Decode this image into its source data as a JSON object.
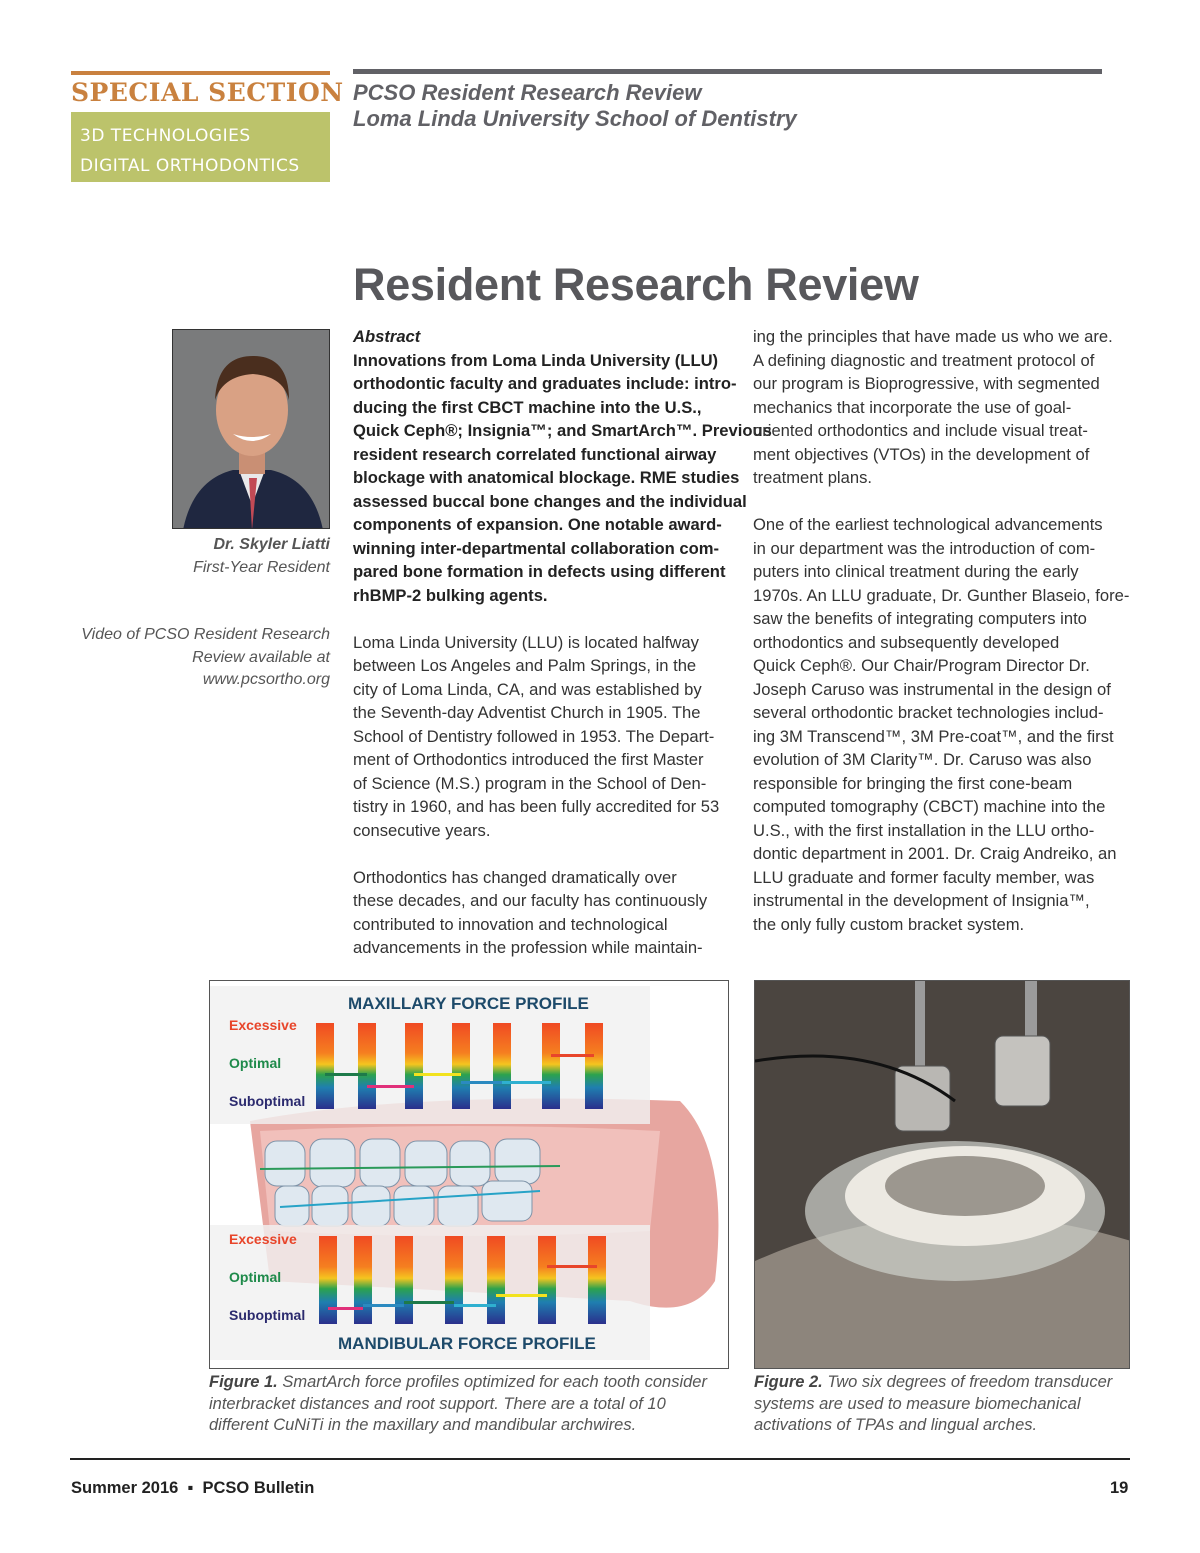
{
  "header": {
    "section_label": "SPECIAL SECTION",
    "topics": [
      "3D TECHNOLOGIES",
      "DIGITAL ORTHODONTICS"
    ],
    "subtitle_lines": [
      "PCSO Resident Research Review",
      "Loma Linda University School of Dentistry"
    ]
  },
  "title": "Resident Research Review",
  "sidebar": {
    "name": "Dr. Skyler Liatti",
    "role": "First-Year Resident",
    "video_lines": [
      "Video of PCSO Resident Research",
      "Review available at",
      "www.pcsortho.org"
    ]
  },
  "abstract": {
    "heading": "Abstract",
    "lines": [
      "Innovations from Loma Linda University (LLU)",
      "orthodontic faculty and graduates include: intro-",
      "ducing the first CBCT machine into the U.S.,",
      "Quick Ceph®; Insignia™; and SmartArch™. Previous",
      "resident research correlated functional airway",
      "blockage with anatomical blockage. RME studies",
      "assessed buccal bone changes and the individual",
      "components of expansion. One notable award-",
      "winning inter-departmental collaboration com-",
      "pared bone formation in defects using different",
      "rhBMP-2 bulking agents."
    ]
  },
  "middle_paragraphs": [
    [
      "Loma Linda University (LLU) is located halfway",
      "between Los Angeles and Palm Springs, in the",
      "city of Loma Linda, CA, and was established by",
      "the Seventh-day Adventist Church in 1905. The",
      "School of Dentistry followed in 1953. The Depart-",
      "ment of Orthodontics introduced the first Master",
      "of Science (M.S.) program in the School of Den-",
      "tistry in 1960, and has been fully accredited for 53",
      "consecutive years."
    ],
    [
      "Orthodontics has changed dramatically over",
      "these decades, and our faculty has continuously",
      "contributed to innovation and technological",
      "advancements in the profession while maintain-"
    ]
  ],
  "right_paragraphs": [
    [
      "ing the principles that have made us who we are.",
      "A defining diagnostic and treatment protocol of",
      "our program is Bioprogressive, with segmented",
      "mechanics that incorporate the use of goal-",
      "oriented orthodontics and include visual treat-",
      "ment objectives (VTOs) in the development of",
      "treatment plans."
    ],
    [
      "One of the earliest technological advancements",
      "in our department was the introduction of com-",
      "puters into clinical treatment during the early",
      "1970s. An LLU graduate, Dr. Gunther Blaseio, fore-",
      "saw the benefits of integrating computers into",
      "orthodontics and subsequently developed",
      "Quick Ceph®. Our Chair/Program Director Dr.",
      "Joseph Caruso was instrumental in the design of",
      "several orthodontic bracket technologies includ-",
      "ing 3M Transcend™, 3M Pre-coat™, and the first",
      "evolution of 3M Clarity™. Dr. Caruso was also",
      "responsible for bringing the first cone-beam",
      "computed tomography (CBCT) machine into the",
      "U.S., with the first installation in the LLU ortho-",
      "dontic department in 2001. Dr. Craig Andreiko, an",
      "LLU graduate and former faculty member, was",
      "instrumental in the development of Insignia™,",
      "the only fully custom bracket system."
    ]
  ],
  "figure1": {
    "top_title": "MAXILLARY FORCE PROFILE",
    "bottom_title": "MANDIBULAR FORCE PROFILE",
    "levels": [
      "Excessive",
      "Optimal",
      "Suboptimal"
    ],
    "level_colors": [
      "#e8452a",
      "#1e8a4a",
      "#2b2a6e"
    ],
    "caption_label": "Figure 1.",
    "caption_lines": [
      "SmartArch force profiles optimized for each tooth consider",
      "interbracket distances and root support. There are a total of 10",
      "different CuNiTi in the maxillary and mandibular archwires."
    ]
  },
  "figure2": {
    "caption_label": "Figure 2.",
    "caption_lines": [
      "Two six degrees of freedom transducer",
      "systems are used to measure biomechanical",
      "activations of TPAs and lingual arches."
    ]
  },
  "footer": {
    "left": "Summer 2016  ▪  PCSO Bulletin",
    "page": "19"
  }
}
